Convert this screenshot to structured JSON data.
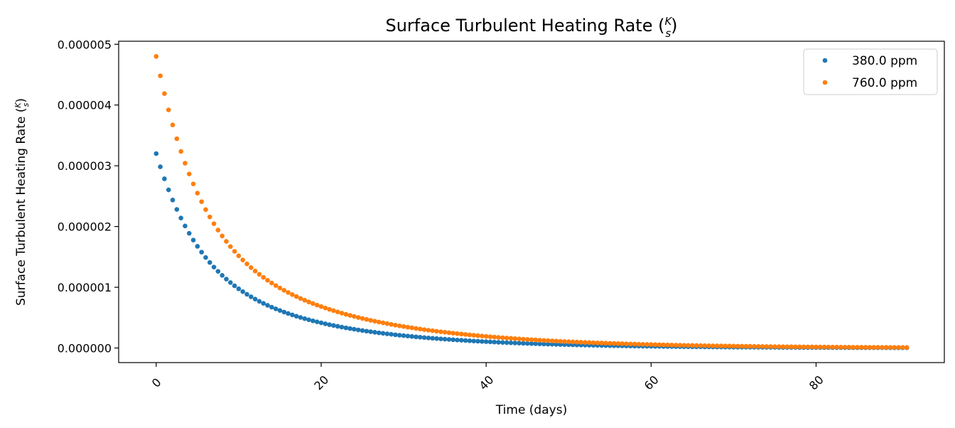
{
  "chart_data": {
    "type": "scatter",
    "title": "Surface Turbulent Heating Rate",
    "title_unit_numerator": "K",
    "title_unit_denominator": "s",
    "xlabel": "Time (days)",
    "ylabel": "Surface Turbulent Heating Rate",
    "xlim": [
      -4.55,
      95.55
    ],
    "ylim": [
      -2.4e-07,
      5.05e-06
    ],
    "xticks": [
      0,
      20,
      40,
      60,
      80
    ],
    "xtick_labels": [
      "0",
      "20",
      "40",
      "60",
      "80"
    ],
    "yticks": [
      0,
      1e-06,
      2e-06,
      3e-06,
      4e-06,
      5e-06
    ],
    "ytick_labels": [
      "0.000000",
      "0.000001",
      "0.000002",
      "0.000003",
      "0.000004",
      "0.000005"
    ],
    "grid": false,
    "legend_position": "top-right",
    "sampling": {
      "x_start": 0,
      "x_end": 91,
      "x_step": 0.5
    },
    "series": [
      {
        "name": "380.0 ppm",
        "color": "#1f77b4",
        "model": "exp_decay_two_term",
        "params": {
          "a1": 1.8e-06,
          "k1": 0.2,
          "a2": 1.4e-06,
          "k2": 0.065
        }
      },
      {
        "name": "760.0 ppm",
        "color": "#ff7f0e",
        "model": "exp_decay_two_term",
        "params": {
          "a1": 2.7e-06,
          "k1": 0.2,
          "a2": 2.1e-06,
          "k2": 0.06
        }
      }
    ]
  }
}
